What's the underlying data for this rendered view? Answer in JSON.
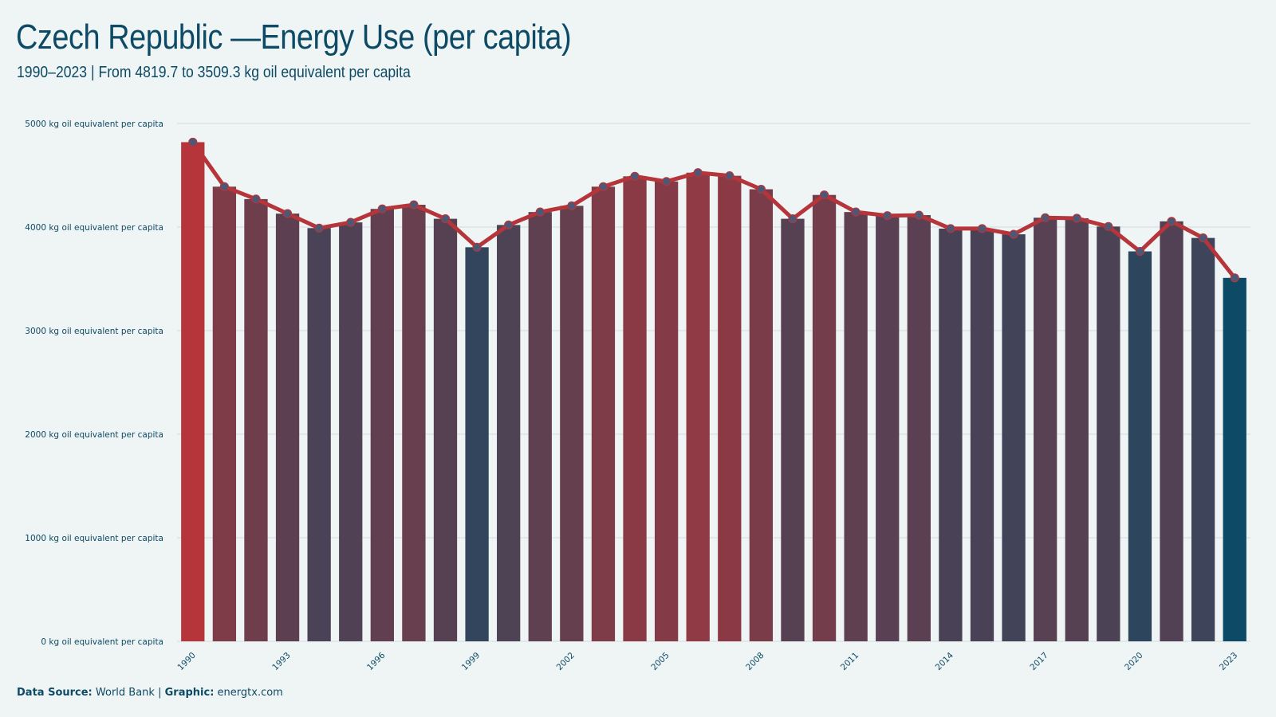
{
  "title": "Czech Republic —Energy Use (per capita)",
  "subtitle": "1990–2023 | From 4819.7 to 3509.3 kg oil equivalent per capita",
  "footer": {
    "source_label": "Data Source:",
    "source_value": "World Bank",
    "graphic_label": "Graphic:",
    "graphic_value": "energtx.com"
  },
  "colors": {
    "background": "#eff5f5",
    "high": "#b5353a",
    "low": "#0c4a66",
    "line": "#b5353a",
    "point": "#4d5876",
    "grid": "#d9e1e4",
    "text": "#0d4a66"
  },
  "chart_data": {
    "type": "bar",
    "overlay": "line with markers",
    "unit": "kg oil equivalent per capita",
    "y_tick_values": [
      0,
      1000,
      2000,
      3000,
      4000,
      5000
    ],
    "y_tick_labels": [
      "0 kg oil equivalent per capita",
      "1000 kg oil equivalent per capita",
      "2000 kg oil equivalent per capita",
      "3000 kg oil equivalent per capita",
      "4000 kg oil equivalent per capita",
      "5000 kg oil equivalent per capita"
    ],
    "ylim": [
      0,
      5000
    ],
    "x_tick_labels": [
      "1990",
      "1993",
      "1996",
      "1999",
      "2002",
      "2005",
      "2008",
      "2011",
      "2014",
      "2017",
      "2020",
      "2023"
    ],
    "categories": [
      1990,
      1991,
      1992,
      1993,
      1994,
      1995,
      1996,
      1997,
      1998,
      1999,
      2000,
      2001,
      2002,
      2003,
      2004,
      2005,
      2006,
      2007,
      2008,
      2009,
      2010,
      2011,
      2012,
      2013,
      2014,
      2015,
      2016,
      2017,
      2018,
      2019,
      2020,
      2021,
      2022,
      2023
    ],
    "values": [
      4819.7,
      4390,
      4270,
      4130,
      3990,
      4045,
      4175,
      4215,
      4080,
      3805,
      4020,
      4145,
      4205,
      4390,
      4490,
      4440,
      4525,
      4495,
      4365,
      4080,
      4310,
      4145,
      4110,
      4115,
      3985,
      3985,
      3930,
      4090,
      4085,
      4005,
      3765,
      4055,
      3895,
      3509.3
    ],
    "grid": true,
    "legend": "none"
  }
}
